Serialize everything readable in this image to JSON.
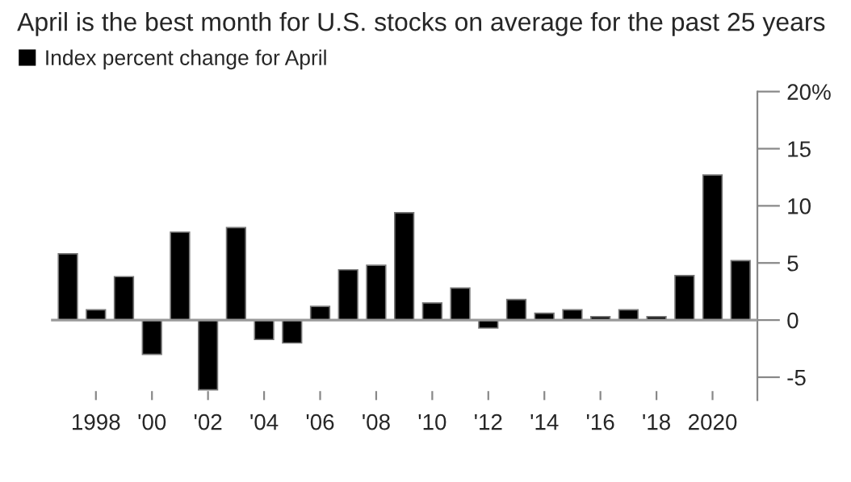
{
  "chart_data": {
    "type": "bar",
    "title": "April is the best month for U.S. stocks on average for the past 25 years",
    "categories": [
      null,
      "1998",
      null,
      "'00",
      null,
      "'02",
      null,
      "'04",
      null,
      "'06",
      null,
      "'08",
      null,
      "'10",
      null,
      "'12",
      null,
      "'14",
      null,
      "'16",
      null,
      "'18",
      null,
      "2020",
      null
    ],
    "series": [
      {
        "name": "Index percent change for April",
        "color": "#000000",
        "values": [
          5.8,
          0.9,
          3.8,
          -3.0,
          7.7,
          -6.1,
          8.1,
          -1.7,
          -2.0,
          1.2,
          4.4,
          4.8,
          9.4,
          1.5,
          2.8,
          -0.7,
          1.8,
          0.6,
          0.9,
          0.3,
          0.9,
          0.3,
          3.9,
          12.7,
          5.2
        ]
      }
    ],
    "ylim": [
      -7,
      20
    ],
    "yticks": [
      {
        "value": 20,
        "label": "20%"
      },
      15,
      10,
      5,
      0,
      -5
    ],
    "ref_lines": [
      {
        "axis": "y",
        "value": 0,
        "color": "#999999"
      }
    ],
    "legend": "top left",
    "grid": false
  }
}
